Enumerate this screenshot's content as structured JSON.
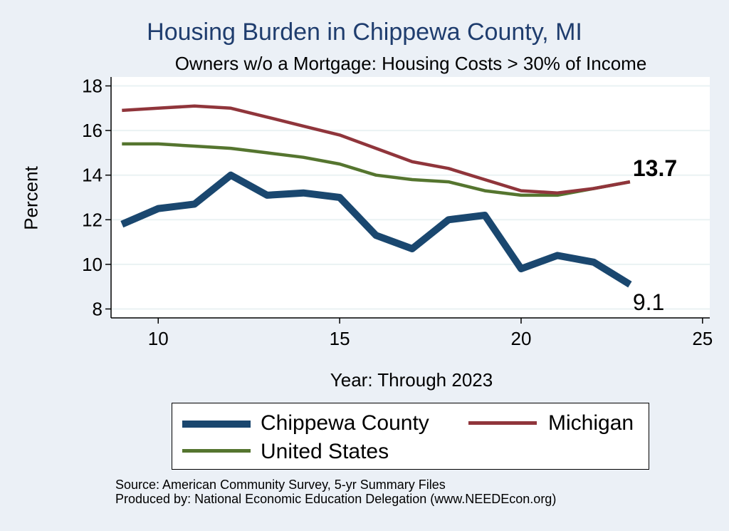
{
  "chart_data": {
    "type": "line",
    "title": "Housing Burden in Chippewa County, MI",
    "subtitle": "Owners w/o a Mortgage: Housing Costs > 30% of Income",
    "xlabel": "Year: Through 2023",
    "ylabel": "Percent",
    "xlim": [
      8.7,
      25.2
    ],
    "ylim": [
      7.6,
      18.4
    ],
    "x_ticks": [
      10,
      15,
      20,
      25
    ],
    "y_ticks": [
      8,
      10,
      12,
      14,
      16,
      18
    ],
    "grid": true,
    "legend_position": "bottom",
    "x": [
      9,
      10,
      11,
      12,
      13,
      14,
      15,
      16,
      17,
      18,
      19,
      20,
      21,
      22,
      23
    ],
    "series": [
      {
        "name": "Chippewa County",
        "color": "#1a476f",
        "values": [
          11.8,
          12.5,
          12.7,
          14.0,
          13.1,
          13.2,
          13.0,
          11.3,
          10.7,
          12.0,
          12.2,
          9.8,
          10.4,
          10.1,
          9.1
        ],
        "end_label": "9.1"
      },
      {
        "name": "Michigan",
        "color": "#90353b",
        "values": [
          16.9,
          17.0,
          17.1,
          17.0,
          16.6,
          16.2,
          15.8,
          15.2,
          14.6,
          14.3,
          13.8,
          13.3,
          13.2,
          13.4,
          13.7
        ],
        "end_label": "13.7"
      },
      {
        "name": "United States",
        "color": "#55752f",
        "values": [
          15.4,
          15.4,
          15.3,
          15.2,
          15.0,
          14.8,
          14.5,
          14.0,
          13.8,
          13.7,
          13.3,
          13.1,
          13.1,
          13.4,
          13.7
        ]
      }
    ]
  },
  "source_line1": "Source: American Community Survey, 5-yr Summary Files",
  "source_line2": "Produced by: National Economic Education Delegation (www.NEEDEcon.org)"
}
